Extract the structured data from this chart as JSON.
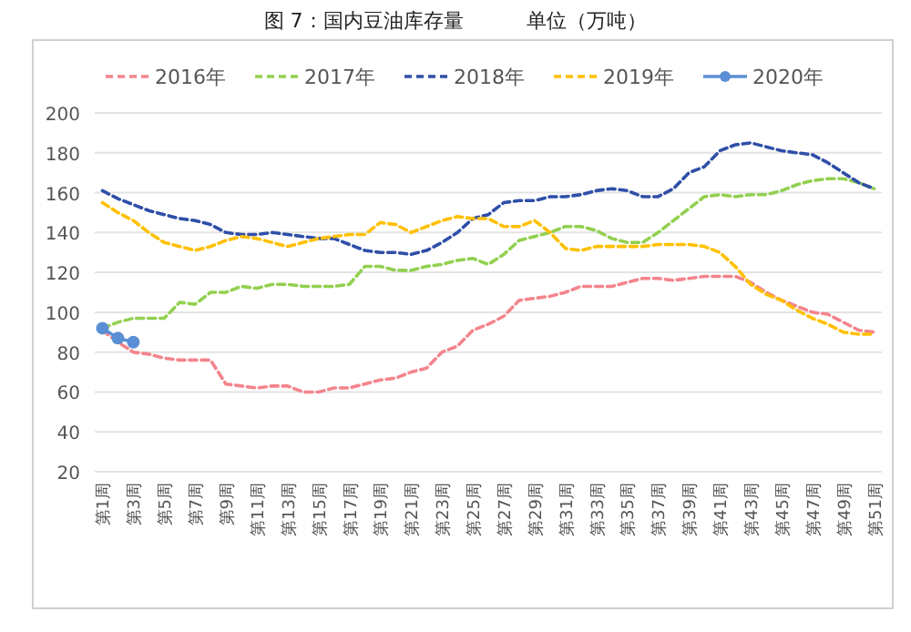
{
  "chart_data": {
    "type": "line",
    "title": "图 7：国内豆油库存量          单位（万吨）",
    "categories": [
      "第1周",
      null,
      "第3周",
      null,
      "第5周",
      null,
      "第7周",
      null,
      "第9周",
      null,
      "第11周",
      null,
      "第13周",
      null,
      "第15周",
      null,
      "第17周",
      null,
      "第19周",
      null,
      "第21周",
      null,
      "第23周",
      null,
      "第25周",
      null,
      "第27周",
      null,
      "第29周",
      null,
      "第31周",
      null,
      "第33周",
      null,
      "第35周",
      null,
      "第37周",
      null,
      "第39周",
      null,
      "第41周",
      null,
      "第43周",
      null,
      "第45周",
      null,
      "第47周",
      null,
      "第49周",
      null,
      "第51周"
    ],
    "series": [
      {
        "name": "2016年",
        "color": "#f4848c",
        "line_style": "dashed",
        "marker": "none",
        "values": [
          91,
          85,
          80,
          79,
          77,
          76,
          76,
          76,
          64,
          63,
          62,
          63,
          63,
          60,
          60,
          62,
          62,
          64,
          66,
          67,
          70,
          72,
          80,
          83,
          91,
          94,
          98,
          106,
          107,
          108,
          110,
          113,
          113,
          113,
          115,
          117,
          117,
          116,
          117,
          118,
          118,
          118,
          115,
          110,
          106,
          103,
          100,
          99,
          95,
          91,
          90
        ]
      },
      {
        "name": "2017年",
        "color": "#92d050",
        "line_style": "dashed",
        "marker": "none",
        "values": [
          92,
          95,
          97,
          97,
          97,
          105,
          104,
          110,
          110,
          113,
          112,
          114,
          114,
          113,
          113,
          113,
          114,
          123,
          123,
          121,
          121,
          123,
          124,
          126,
          127,
          124,
          129,
          136,
          138,
          140,
          143,
          143,
          141,
          137,
          135,
          135,
          140,
          146,
          152,
          158,
          159,
          158,
          159,
          159,
          161,
          164,
          166,
          167,
          167,
          165,
          162
        ]
      },
      {
        "name": "2018年",
        "color": "#2f4fa8",
        "line_style": "dashed",
        "marker": "none",
        "values": [
          161,
          157,
          154,
          151,
          149,
          147,
          146,
          144,
          140,
          139,
          139,
          140,
          139,
          138,
          137,
          137,
          134,
          131,
          130,
          130,
          129,
          131,
          135,
          140,
          147,
          149,
          155,
          156,
          156,
          158,
          158,
          159,
          161,
          162,
          161,
          158,
          158,
          162,
          170,
          173,
          181,
          184,
          185,
          183,
          181,
          180,
          179,
          175,
          170,
          165,
          162
        ]
      },
      {
        "name": "2019年",
        "color": "#ffc000",
        "line_style": "dashed",
        "marker": "none",
        "values": [
          155,
          150,
          146,
          140,
          135,
          133,
          131,
          133,
          136,
          138,
          137,
          135,
          133,
          135,
          137,
          138,
          139,
          139,
          145,
          144,
          140,
          143,
          146,
          148,
          147,
          147,
          143,
          143,
          146,
          140,
          132,
          131,
          133,
          133,
          133,
          133,
          134,
          134,
          134,
          133,
          130,
          123,
          114,
          109,
          106,
          101,
          97,
          94,
          90,
          89,
          89
        ]
      },
      {
        "name": "2020年",
        "color": "#5b8fd5",
        "line_style": "solid",
        "marker": "circle",
        "values": [
          92,
          87,
          85,
          null,
          null,
          null,
          null,
          null,
          null,
          null,
          null,
          null,
          null,
          null,
          null,
          null,
          null,
          null,
          null,
          null,
          null,
          null,
          null,
          null,
          null,
          null,
          null,
          null,
          null,
          null,
          null,
          null,
          null,
          null,
          null,
          null,
          null,
          null,
          null,
          null,
          null,
          null,
          null,
          null,
          null,
          null,
          null,
          null,
          null,
          null,
          null
        ]
      }
    ],
    "ylim": [
      20,
      200
    ],
    "yticks": [
      20,
      40,
      60,
      80,
      100,
      120,
      140,
      160,
      180,
      200
    ],
    "grid": "y",
    "legend": "top"
  }
}
